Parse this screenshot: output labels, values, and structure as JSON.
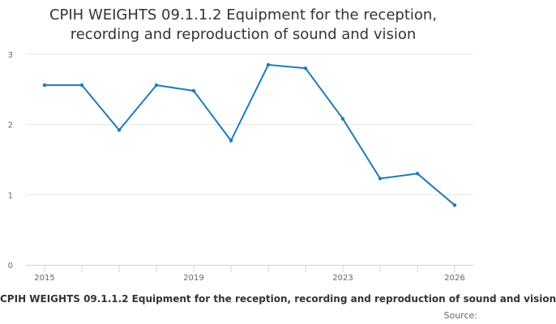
{
  "chart_data": {
    "type": "line",
    "title_lines": [
      "CPIH WEIGHTS 09.1.1.2 Equipment for the reception,",
      "recording and reproduction of sound and vision"
    ],
    "xlabel": "CPIH WEIGHTS 09.1.1.2 Equipment for the reception, recording and reproduction of sound and vision",
    "ylabel": "",
    "xlim": [
      2015,
      2026
    ],
    "ylim": [
      0,
      3
    ],
    "x_ticks": [
      2015,
      2019,
      2023,
      2026
    ],
    "y_ticks": [
      0,
      1,
      2,
      3
    ],
    "grid": "horizontal",
    "legend": "none",
    "series": [
      {
        "color": "#1f7bb6",
        "points": [
          {
            "x": 2015,
            "y": 2.56
          },
          {
            "x": 2016,
            "y": 2.56
          },
          {
            "x": 2017,
            "y": 1.92
          },
          {
            "x": 2018,
            "y": 2.56
          },
          {
            "x": 2019,
            "y": 2.48
          },
          {
            "x": 2020,
            "y": 1.77
          },
          {
            "x": 2021,
            "y": 2.85
          },
          {
            "x": 2022,
            "y": 2.8
          },
          {
            "x": 2023,
            "y": 2.08
          },
          {
            "x": 2024,
            "y": 1.23
          },
          {
            "x": 2025,
            "y": 1.3
          },
          {
            "x": 2026,
            "y": 0.85
          }
        ]
      }
    ]
  },
  "credits": "Source:"
}
